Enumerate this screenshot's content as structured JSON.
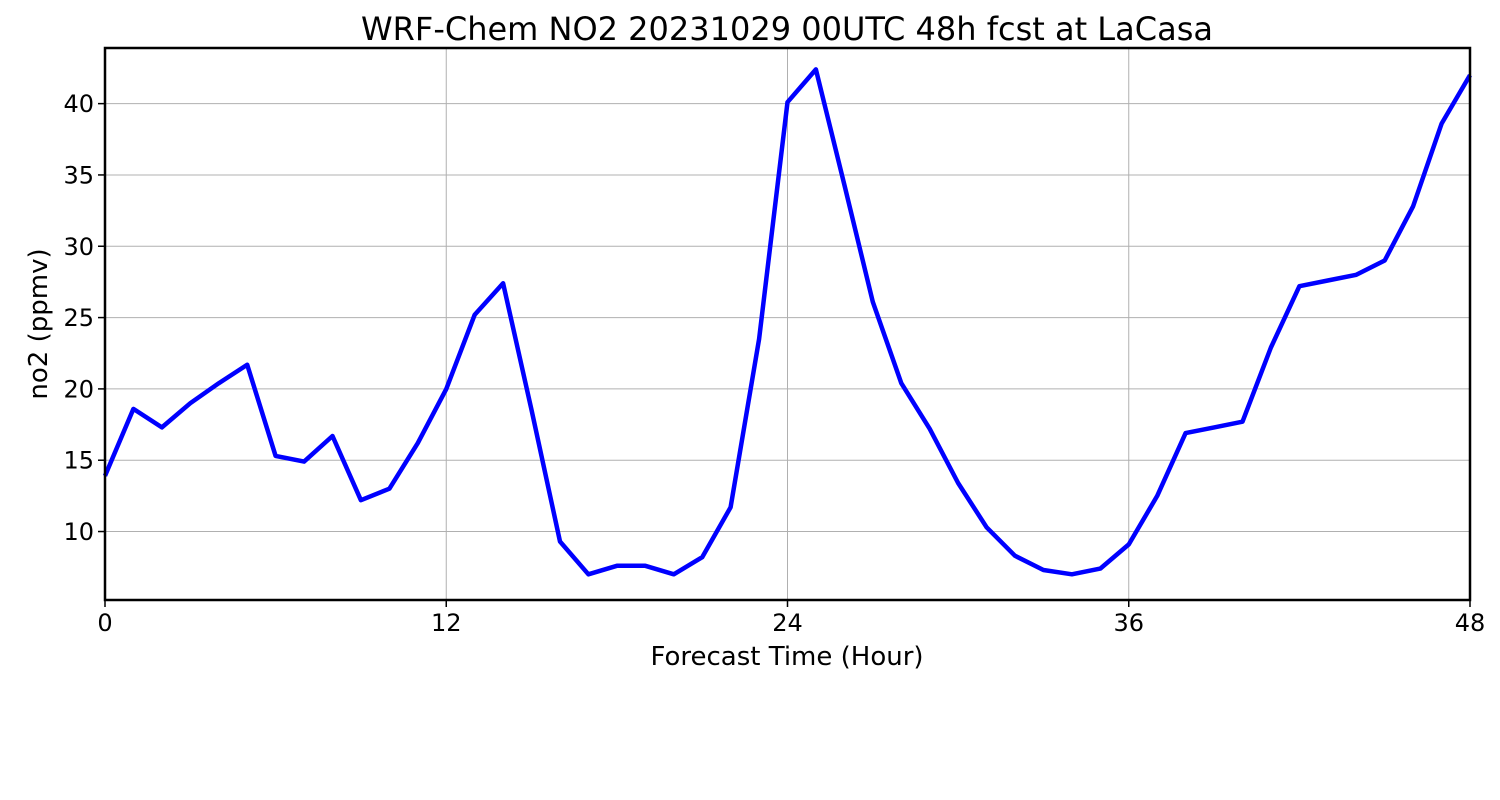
{
  "chart_data": {
    "type": "line",
    "title": "WRF-Chem NO2  20231029 00UTC 48h fcst at LaCasa",
    "xlabel": "Forecast Time (Hour)",
    "ylabel": "no2  (ppmv)",
    "xlim": [
      0,
      48
    ],
    "ylim": [
      5.2,
      43.9
    ],
    "xticks": [
      0,
      12,
      24,
      36,
      48
    ],
    "yticks": [
      10,
      15,
      20,
      25,
      30,
      35,
      40
    ],
    "grid": true,
    "series": [
      {
        "color": "#0000ff",
        "x": [
          0,
          1,
          2,
          3,
          4,
          5,
          6,
          7,
          8,
          9,
          10,
          11,
          12,
          13,
          14,
          15,
          16,
          17,
          18,
          19,
          20,
          21,
          22,
          23,
          24,
          25,
          26,
          27,
          28,
          29,
          30,
          31,
          32,
          33,
          34,
          35,
          36,
          37,
          38,
          39,
          40,
          41,
          42,
          43,
          44,
          45,
          46,
          47,
          48
        ],
        "y": [
          13.9,
          18.6,
          17.3,
          19.0,
          20.4,
          21.7,
          15.3,
          14.9,
          16.7,
          12.2,
          13.0,
          16.2,
          20.0,
          25.2,
          27.4,
          18.5,
          9.3,
          7.0,
          7.6,
          7.6,
          7.0,
          8.2,
          11.7,
          23.5,
          40.1,
          42.4,
          34.3,
          26.1,
          20.4,
          17.2,
          13.4,
          10.3,
          8.3,
          7.3,
          7.0,
          7.4,
          9.1,
          12.5,
          16.9,
          17.3,
          17.7,
          22.9,
          27.2,
          27.6,
          28.0,
          29.0,
          32.8,
          38.6,
          42.0
        ]
      }
    ]
  }
}
